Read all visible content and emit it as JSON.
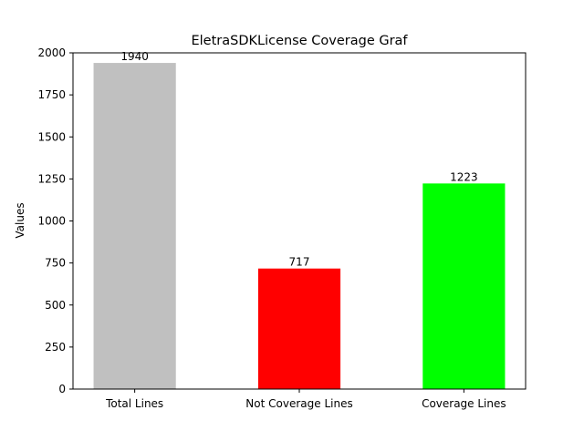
{
  "chart_data": {
    "type": "bar",
    "title": "EletraSDKLicense Coverage Graf",
    "xlabel": "",
    "ylabel": "Values",
    "ylim": [
      0,
      2000
    ],
    "yticks": [
      0,
      250,
      500,
      750,
      1000,
      1250,
      1500,
      1750,
      2000
    ],
    "categories": [
      "Total Lines",
      "Not Coverage Lines",
      "Coverage Lines"
    ],
    "values": [
      1940,
      717,
      1223
    ],
    "colors": [
      "#c0c0c0",
      "#ff0000",
      "#00ff00"
    ],
    "data_labels": [
      "1940",
      "717",
      "1223"
    ],
    "grid": false,
    "legend": "none"
  }
}
